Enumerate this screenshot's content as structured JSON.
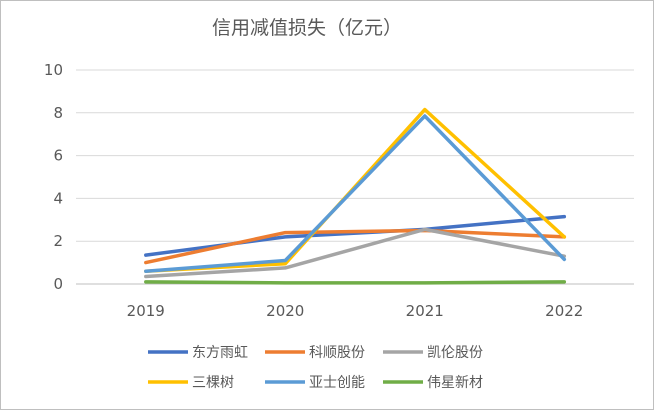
{
  "chart_data": {
    "type": "line",
    "title": "信用减值损失（亿元）",
    "xlabel": "",
    "ylabel": "",
    "categories": [
      "2019",
      "2020",
      "2021",
      "2022"
    ],
    "ylim": [
      0,
      10
    ],
    "yticks": [
      "0",
      "2",
      "4",
      "6",
      "8",
      "10"
    ],
    "grid": true,
    "legend_position": "bottom",
    "series": [
      {
        "name": "东方雨虹",
        "color": "#4472c4",
        "values": [
          1.35,
          2.2,
          2.55,
          3.15
        ]
      },
      {
        "name": "科顺股份",
        "color": "#ed7d31",
        "values": [
          1.0,
          2.4,
          2.5,
          2.2
        ]
      },
      {
        "name": "凯伦股份",
        "color": "#a5a5a5",
        "values": [
          0.35,
          0.75,
          2.55,
          1.3
        ]
      },
      {
        "name": "三棵树",
        "color": "#ffc000",
        "values": [
          0.6,
          0.95,
          8.15,
          2.2
        ]
      },
      {
        "name": "亚士创能",
        "color": "#5b9bd5",
        "values": [
          0.6,
          1.1,
          7.85,
          1.15
        ]
      },
      {
        "name": "伟星新材",
        "color": "#70ad47",
        "values": [
          0.1,
          0.05,
          0.05,
          0.1
        ]
      }
    ]
  }
}
